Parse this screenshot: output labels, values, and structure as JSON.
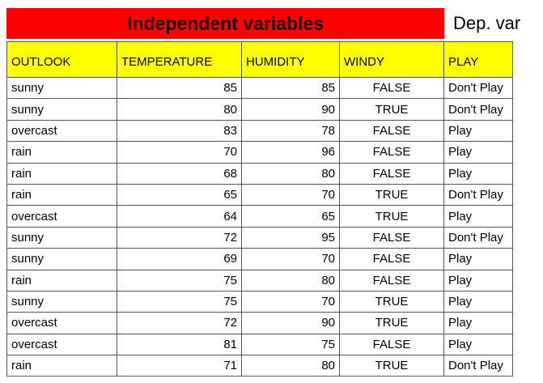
{
  "banner": {
    "independent_label": "Independent variables",
    "dependent_label": "Dep. var",
    "independent_color": "#ff0000",
    "header_color": "#ffff00"
  },
  "table": {
    "columns": [
      "OUTLOOK",
      "TEMPERATURE",
      "HUMIDITY",
      "WINDY",
      "PLAY"
    ],
    "rows": [
      [
        "sunny",
        "85",
        "85",
        "FALSE",
        "Don't Play"
      ],
      [
        "sunny",
        "80",
        "90",
        "TRUE",
        "Don't Play"
      ],
      [
        "overcast",
        "83",
        "78",
        "FALSE",
        "Play"
      ],
      [
        "rain",
        "70",
        "96",
        "FALSE",
        "Play"
      ],
      [
        "rain",
        "68",
        "80",
        "FALSE",
        "Play"
      ],
      [
        "rain",
        "65",
        "70",
        "TRUE",
        "Don't Play"
      ],
      [
        "overcast",
        "64",
        "65",
        "TRUE",
        "Play"
      ],
      [
        "sunny",
        "72",
        "95",
        "FALSE",
        "Don't Play"
      ],
      [
        "sunny",
        "69",
        "70",
        "FALSE",
        "Play"
      ],
      [
        "rain",
        "75",
        "80",
        "FALSE",
        "Play"
      ],
      [
        "sunny",
        "75",
        "70",
        "TRUE",
        "Play"
      ],
      [
        "overcast",
        "72",
        "90",
        "TRUE",
        "Play"
      ],
      [
        "overcast",
        "81",
        "75",
        "FALSE",
        "Play"
      ],
      [
        "rain",
        "71",
        "80",
        "TRUE",
        "Don't Play"
      ]
    ]
  }
}
